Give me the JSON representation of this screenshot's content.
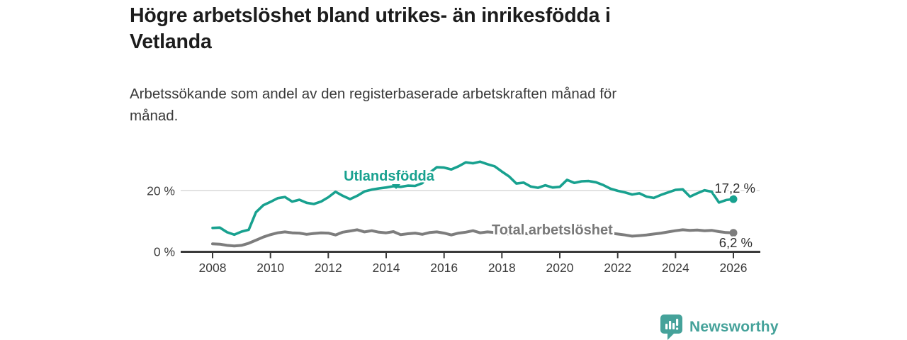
{
  "header": {
    "title_lines": [
      "Högre arbetslöshet bland utrikes- än inrikesfödda i",
      "Vetlanda"
    ],
    "subtitle_lines": [
      "Arbetssökande som andel av den registerbaserade arbetskraften månad för",
      "månad."
    ]
  },
  "chart_data": {
    "type": "line",
    "title": "Högre arbetslöshet bland utrikes- än inrikesfödda i Vetlanda",
    "subtitle": "Arbetssökande som andel av den registerbaserade arbetskraften månad för månad.",
    "xlabel": "",
    "ylabel": "",
    "unit": "%",
    "x_start": 2008,
    "x_step": 0.25,
    "x_range": [
      2008,
      2026
    ],
    "ylim": [
      0,
      32
    ],
    "grid": "y-at-20-only",
    "legend_position": "inline-labels",
    "y_ticks": [
      {
        "value": 20,
        "label": "20 %"
      },
      {
        "value": 0,
        "label": "0 %"
      }
    ],
    "x_ticks": [
      {
        "value": 2008,
        "label": "2008"
      },
      {
        "value": 2010,
        "label": "2010"
      },
      {
        "value": 2012,
        "label": "2012"
      },
      {
        "value": 2014,
        "label": "2014"
      },
      {
        "value": 2016,
        "label": "2016"
      },
      {
        "value": 2018,
        "label": "2018"
      },
      {
        "value": 2020,
        "label": "2020"
      },
      {
        "value": 2022,
        "label": "2022"
      },
      {
        "value": 2024,
        "label": "2024"
      },
      {
        "value": 2026,
        "label": "2026"
      }
    ],
    "series": [
      {
        "name": "Utlandsfödda",
        "color": "#18a18f",
        "end_label": "17,2 %",
        "end_value": 17.2,
        "values": [
          7.8,
          7.9,
          6.4,
          5.6,
          6.6,
          7.2,
          12.9,
          15.2,
          16.3,
          17.5,
          17.9,
          16.4,
          17.0,
          16.0,
          15.6,
          16.4,
          17.8,
          19.6,
          18.3,
          17.2,
          18.3,
          19.7,
          20.3,
          20.7,
          21.0,
          21.4,
          21.2,
          21.6,
          21.5,
          22.4,
          25.8,
          27.6,
          27.5,
          26.9,
          27.9,
          29.2,
          28.9,
          29.4,
          28.6,
          27.9,
          26.2,
          24.6,
          22.3,
          22.6,
          21.3,
          20.9,
          21.7,
          21.0,
          21.2,
          23.5,
          22.5,
          23.0,
          23.1,
          22.7,
          21.8,
          20.6,
          19.9,
          19.4,
          18.7,
          19.1,
          18.0,
          17.6,
          18.6,
          19.4,
          20.2,
          20.4,
          18.0,
          19.1,
          20.1,
          19.6,
          16.1,
          16.9,
          17.2
        ]
      },
      {
        "name": "Total arbetslöshet",
        "color": "#7d7d7d",
        "end_label": "6,2 %",
        "end_value": 6.2,
        "values": [
          2.6,
          2.5,
          2.1,
          1.9,
          2.1,
          2.8,
          3.8,
          4.8,
          5.6,
          6.2,
          6.5,
          6.2,
          6.1,
          5.7,
          6.0,
          6.2,
          6.1,
          5.5,
          6.4,
          6.8,
          7.2,
          6.5,
          6.9,
          6.4,
          6.2,
          6.6,
          5.6,
          5.9,
          6.1,
          5.7,
          6.3,
          6.5,
          6.1,
          5.5,
          6.1,
          6.4,
          6.9,
          6.2,
          6.5,
          6.3,
          6.1,
          5.8,
          6.4,
          6.0,
          5.8,
          6.1,
          6.3,
          5.9,
          6.2,
          7.0,
          7.2,
          6.9,
          7.0,
          6.7,
          6.4,
          6.1,
          5.8,
          5.5,
          5.1,
          5.3,
          5.5,
          5.8,
          6.1,
          6.5,
          6.9,
          7.2,
          7.0,
          7.1,
          6.9,
          7.0,
          6.6,
          6.3,
          6.2
        ]
      }
    ]
  },
  "footer": {
    "brand": "Newsworthy",
    "brand_color": "#45a29a",
    "logo_icon": "bar-chart-speech-bubble"
  }
}
